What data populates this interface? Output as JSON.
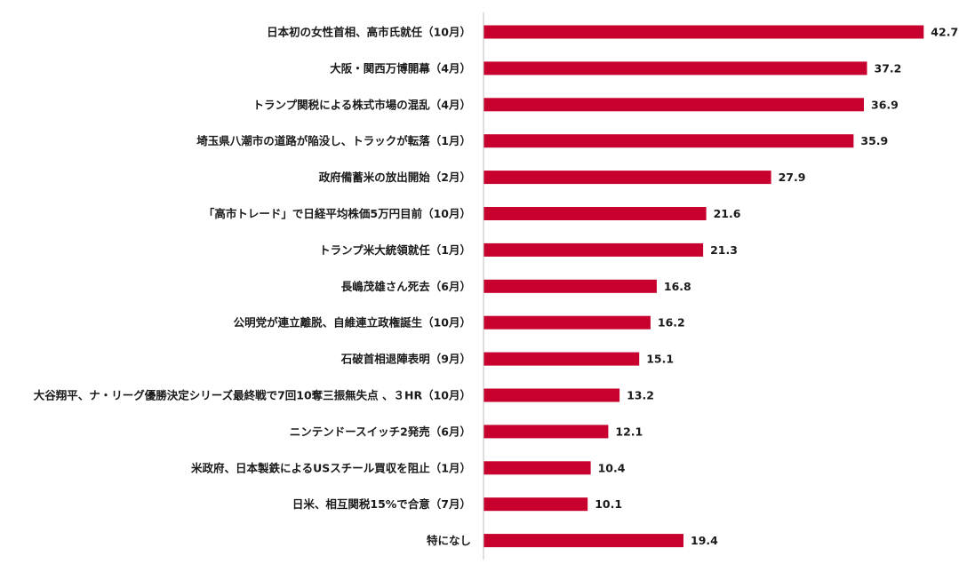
{
  "chart_data": {
    "type": "bar",
    "orientation": "horizontal",
    "categories": [
      "日本初の女性首相、高市氏就任（10月）",
      "大阪・関西万博開幕（4月）",
      "トランプ関税による株式市場の混乱（4月）",
      "埼玉県八潮市の道路が陥没し、トラックが転落（1月）",
      "政府備蓄米の放出開始（2月）",
      "「高市トレード」で日経平均株価5万円目前（10月）",
      "トランプ米大統領就任（1月）",
      "長嶋茂雄さん死去（6月）",
      "公明党が連立離脱、自維連立政権誕生（10月）",
      "石破首相退陣表明（9月）",
      "大谷翔平、ナ・リーグ優勝決定シリーズ最終戦で7回10奪三振無失点 、３HR（10月）",
      "ニンテンドースイッチ2発売（6月）",
      "米政府、日本製鉄によるUSスチール買収を阻止（1月）",
      "日米、相互関税15%で合意（7月）",
      "特になし"
    ],
    "values": [
      42.7,
      37.2,
      36.9,
      35.9,
      27.9,
      21.6,
      21.3,
      16.8,
      16.2,
      15.1,
      13.2,
      12.1,
      10.4,
      10.1,
      19.4
    ],
    "value_labels": [
      "42.7",
      "37.2",
      "36.9",
      "35.9",
      "27.9",
      "21.6",
      "21.3",
      "16.8",
      "16.2",
      "15.1",
      "13.2",
      "12.1",
      "10.4",
      "10.1",
      "19.4"
    ],
    "xlim": [
      0,
      45
    ],
    "grid": false,
    "legend": "none",
    "bar_color": "#c8002e",
    "axis_color": "#bfbfbf",
    "title": "",
    "xlabel": "",
    "ylabel": ""
  }
}
